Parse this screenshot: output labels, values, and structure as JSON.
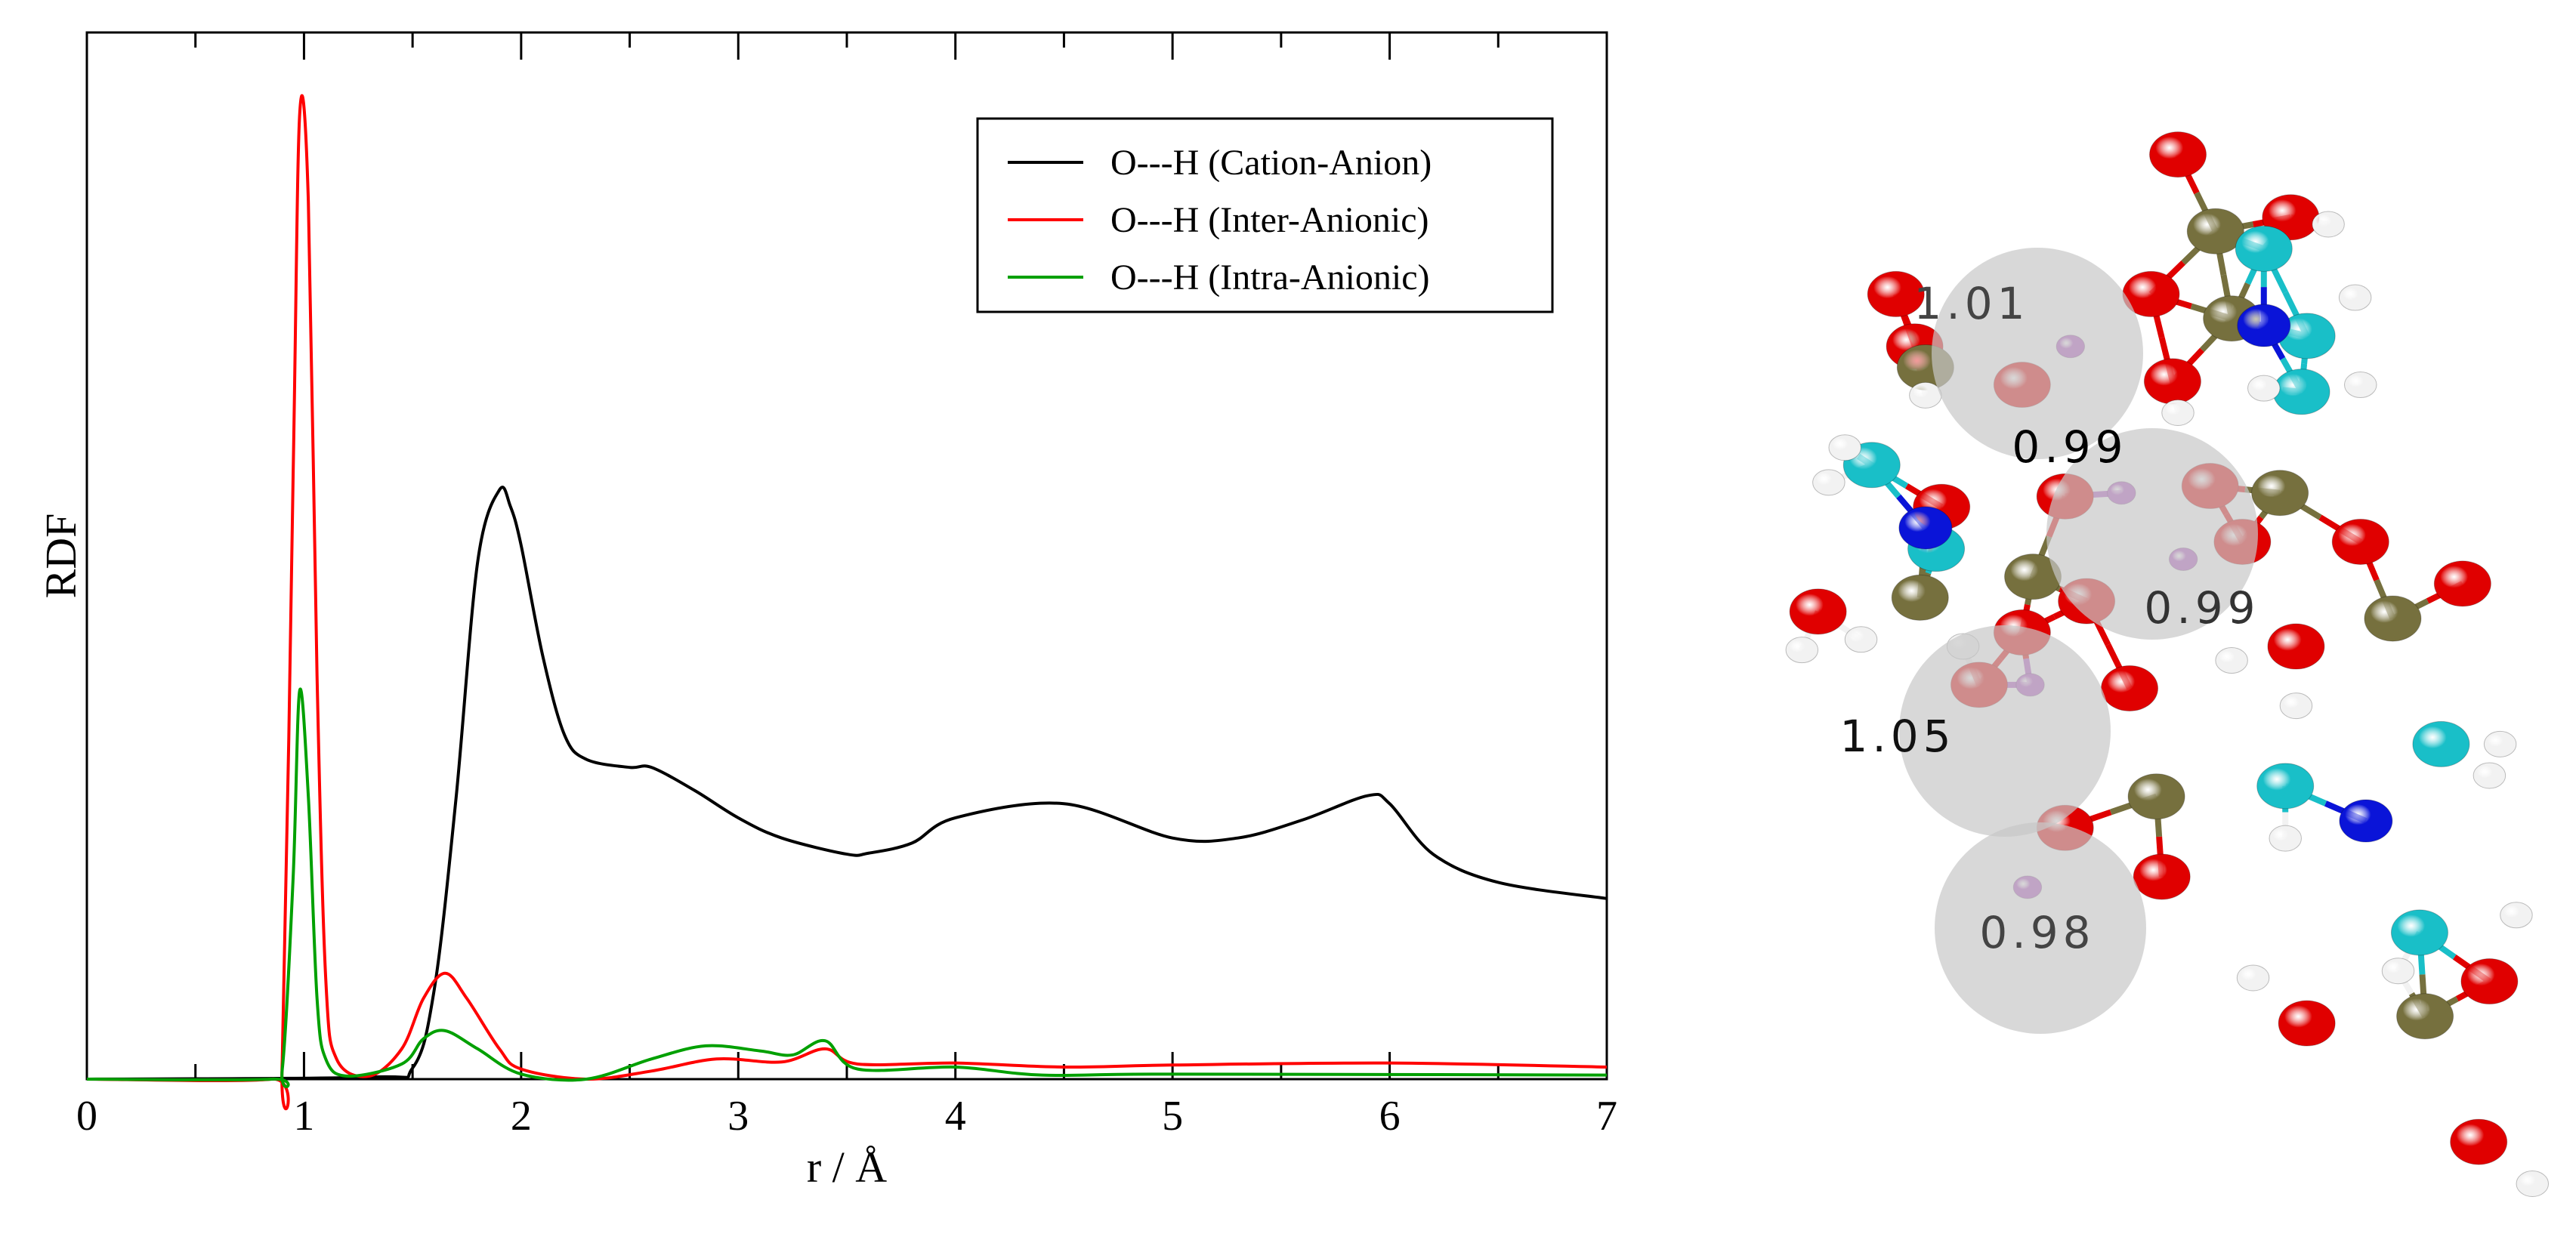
{
  "chart_data": {
    "type": "line",
    "title": "",
    "xlabel": "r / Å",
    "ylabel": "RDF",
    "xlim": [
      0,
      7
    ],
    "ylim": [
      0,
      1.0
    ],
    "xticks": [
      "0",
      "1",
      "2",
      "3",
      "4",
      "5",
      "6",
      "7"
    ],
    "yticks": [],
    "grid": false,
    "legend_position": "top-right",
    "series": [
      {
        "name": "O---H (Cation-Anion)",
        "color": "#000000",
        "x": [
          0,
          1.3,
          1.5,
          1.6,
          1.7,
          1.8,
          1.9,
          1.95,
          2.0,
          2.1,
          2.2,
          2.3,
          2.5,
          2.6,
          2.8,
          3.0,
          3.2,
          3.5,
          3.6,
          3.8,
          4.0,
          4.5,
          5.0,
          5.3,
          5.6,
          5.9,
          6.0,
          6.2,
          6.5,
          7.0
        ],
        "y": [
          0,
          0.002,
          0.011,
          0.089,
          0.278,
          0.513,
          0.584,
          0.568,
          0.529,
          0.419,
          0.341,
          0.317,
          0.309,
          0.309,
          0.286,
          0.259,
          0.239,
          0.223,
          0.224,
          0.234,
          0.259,
          0.273,
          0.239,
          0.239,
          0.257,
          0.281,
          0.273,
          0.223,
          0.195,
          0.179
        ]
      },
      {
        "name": "O---H (Inter-Anionic)",
        "color": "#ff0000",
        "x": [
          0,
          0.85,
          0.9,
          0.95,
          0.98,
          1.02,
          1.06,
          1.1,
          1.15,
          1.3,
          1.45,
          1.55,
          1.65,
          1.75,
          1.9,
          2.0,
          2.3,
          2.6,
          2.9,
          3.2,
          3.4,
          3.55,
          4.0,
          4.5,
          5.0,
          6.0,
          7.0
        ],
        "y": [
          0,
          0,
          0.02,
          0.6,
          0.956,
          0.87,
          0.4,
          0.1,
          0.02,
          0.003,
          0.03,
          0.08,
          0.105,
          0.08,
          0.03,
          0.01,
          0,
          0.008,
          0.02,
          0.017,
          0.03,
          0.015,
          0.016,
          0.012,
          0.014,
          0.016,
          0.012
        ]
      },
      {
        "name": "O---H (Intra-Anionic)",
        "color": "#00a000",
        "x": [
          0,
          0.85,
          0.9,
          0.95,
          0.98,
          1.02,
          1.06,
          1.1,
          1.2,
          1.45,
          1.55,
          1.65,
          1.8,
          2.0,
          2.3,
          2.6,
          2.85,
          3.1,
          3.25,
          3.4,
          3.55,
          4.0,
          4.4,
          5.0,
          7.0
        ],
        "y": [
          0,
          0,
          0.01,
          0.2,
          0.385,
          0.28,
          0.08,
          0.02,
          0.003,
          0.015,
          0.04,
          0.048,
          0.03,
          0.005,
          0,
          0.02,
          0.033,
          0.028,
          0.024,
          0.038,
          0.01,
          0.012,
          0.004,
          0.005,
          0.004
        ]
      }
    ]
  },
  "molecule": {
    "bond_length_labels": [
      "1.01",
      "0.99",
      "0.99",
      "1.05",
      "0.98"
    ],
    "atom_colors": {
      "O": "#e00000",
      "C": "#76703e",
      "CH": "#19bfc8",
      "N": "#0a14d8",
      "H": "#f2f2f2",
      "Hb": "#b050c0"
    },
    "highlight_color": "#c8c8c8"
  }
}
